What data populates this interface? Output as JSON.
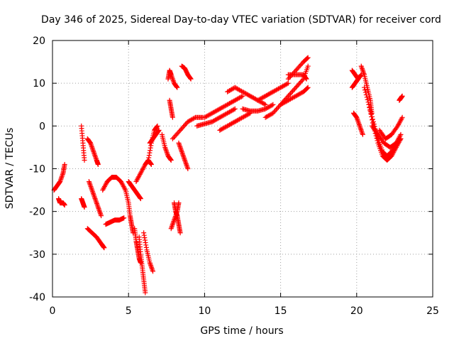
{
  "chart_data": {
    "type": "scatter",
    "title": "Day 346 of 2025, Sidereal Day-to-day VTEC variation (SDTVAR) for receiver cord",
    "xlabel": "GPS time / hours",
    "ylabel": "SDTVAR / TECUs",
    "xlim": [
      0,
      25
    ],
    "ylim": [
      -40,
      20
    ],
    "xticks": [
      "0",
      "5",
      "10",
      "15",
      "20",
      "25"
    ],
    "yticks": [
      "-40",
      "-30",
      "-20",
      "-10",
      "0",
      "10",
      "20"
    ],
    "grid": true,
    "marker": "+",
    "color": "#ff0000",
    "series": [
      {
        "name": "s1",
        "x": [
          0.1,
          0.3,
          0.5,
          0.7,
          0.8
        ],
        "y": [
          -15,
          -14,
          -13,
          -11,
          -9
        ]
      },
      {
        "name": "s2",
        "x": [
          0.4,
          0.5,
          0.7,
          0.8
        ],
        "y": [
          -17,
          -18,
          -18,
          -18.5
        ]
      },
      {
        "name": "s3",
        "x": [
          1.9,
          2.0,
          2.1
        ],
        "y": [
          0,
          -4,
          -8
        ]
      },
      {
        "name": "s4",
        "x": [
          1.9,
          2.0,
          2.1
        ],
        "y": [
          -17,
          -18,
          -19
        ]
      },
      {
        "name": "s5",
        "x": [
          2.3,
          2.5,
          2.7,
          2.9,
          3.0
        ],
        "y": [
          -3,
          -4,
          -6,
          -8,
          -9
        ]
      },
      {
        "name": "s6",
        "x": [
          2.4,
          2.6,
          2.8,
          3.0,
          3.2
        ],
        "y": [
          -13,
          -15,
          -17,
          -19,
          -21
        ]
      },
      {
        "name": "s7",
        "x": [
          2.3,
          2.6,
          2.9,
          3.2,
          3.4
        ],
        "y": [
          -24,
          -25,
          -26,
          -27.5,
          -28.5
        ]
      },
      {
        "name": "s8",
        "x": [
          3.3,
          3.6,
          3.9,
          4.2,
          4.5,
          4.8
        ],
        "y": [
          -15,
          -13,
          -12,
          -12,
          -13,
          -15
        ]
      },
      {
        "name": "s9",
        "x": [
          3.5,
          3.8,
          4.1,
          4.4,
          4.7
        ],
        "y": [
          -23,
          -22.5,
          -22,
          -22,
          -21.5
        ]
      },
      {
        "name": "s10",
        "x": [
          4.8,
          5.0,
          5.1,
          5.2,
          5.3
        ],
        "y": [
          -15,
          -18,
          -21,
          -23,
          -25
        ]
      },
      {
        "name": "s11",
        "x": [
          5.0,
          5.2,
          5.4,
          5.6,
          5.8
        ],
        "y": [
          -13,
          -14,
          -15,
          -16,
          -17
        ]
      },
      {
        "name": "s12",
        "x": [
          5.4,
          5.5,
          5.6,
          5.7,
          5.8
        ],
        "y": [
          -24,
          -27,
          -29,
          -31,
          -32
        ]
      },
      {
        "name": "s13",
        "x": [
          5.7,
          5.8,
          5.9,
          6.0,
          6.1
        ],
        "y": [
          -26,
          -30,
          -33,
          -36,
          -39
        ]
      },
      {
        "name": "s14",
        "x": [
          6.0,
          6.2,
          6.4,
          6.6
        ],
        "y": [
          -25,
          -29,
          -32,
          -34
        ]
      },
      {
        "name": "s15",
        "x": [
          5.5,
          5.8,
          6.1,
          6.3,
          6.5
        ],
        "y": [
          -13,
          -11,
          -9,
          -8,
          -9
        ]
      },
      {
        "name": "s16",
        "x": [
          6.3,
          6.5,
          6.7,
          6.9
        ],
        "y": [
          -8,
          -4,
          -1,
          0
        ]
      },
      {
        "name": "s17",
        "x": [
          6.4,
          6.6,
          6.8,
          7.0
        ],
        "y": [
          -4,
          -3,
          -2,
          -1
        ]
      },
      {
        "name": "s18",
        "x": [
          7.2,
          7.4,
          7.6,
          7.8
        ],
        "y": [
          -2,
          -5,
          -7,
          -8
        ]
      },
      {
        "name": "s19",
        "x": [
          7.8,
          8.0,
          8.2,
          8.3
        ],
        "y": [
          -24,
          -22,
          -20,
          -18
        ]
      },
      {
        "name": "s20",
        "x": [
          8.0,
          8.1,
          8.2,
          8.3,
          8.4
        ],
        "y": [
          -18,
          -20,
          -21,
          -23,
          -25
        ]
      },
      {
        "name": "s21",
        "x": [
          7.6,
          7.7,
          7.8,
          8.0,
          8.2
        ],
        "y": [
          11,
          13,
          12,
          10,
          9
        ]
      },
      {
        "name": "s22",
        "x": [
          7.7,
          7.8,
          7.9
        ],
        "y": [
          6,
          4,
          2
        ]
      },
      {
        "name": "s23",
        "x": [
          8.5,
          8.7,
          8.9,
          9.1
        ],
        "y": [
          14,
          13.5,
          12,
          11
        ]
      },
      {
        "name": "s24",
        "x": [
          7.9,
          8.4,
          8.9,
          9.4,
          9.9
        ],
        "y": [
          -3,
          -1,
          1,
          2,
          2
        ]
      },
      {
        "name": "s25",
        "x": [
          8.3,
          8.5,
          8.7,
          8.9
        ],
        "y": [
          -4,
          -6,
          -8,
          -10
        ]
      },
      {
        "name": "s26",
        "x": [
          9.5,
          10.0,
          10.5,
          11.0,
          11.5,
          12.0
        ],
        "y": [
          0,
          0.5,
          1,
          2,
          3,
          4
        ]
      },
      {
        "name": "s27",
        "x": [
          10.0,
          10.5,
          11.0,
          11.5,
          12.0,
          12.5
        ],
        "y": [
          2,
          3,
          4,
          5,
          6,
          7
        ]
      },
      {
        "name": "s28",
        "x": [
          11.0,
          11.5,
          12.0,
          12.5,
          13.0
        ],
        "y": [
          -1,
          0,
          1,
          2,
          3
        ]
      },
      {
        "name": "s29",
        "x": [
          11.5,
          12.0,
          12.5,
          13.0,
          13.5,
          14.0
        ],
        "y": [
          8,
          9,
          8,
          7,
          6,
          5
        ]
      },
      {
        "name": "s30",
        "x": [
          12.5,
          13.0,
          13.5,
          14.0,
          14.5
        ],
        "y": [
          4,
          3.5,
          3.5,
          4,
          5
        ]
      },
      {
        "name": "s31",
        "x": [
          13.5,
          14.0,
          14.5,
          15.0,
          15.5
        ],
        "y": [
          6,
          7,
          8,
          9,
          10
        ]
      },
      {
        "name": "s32",
        "x": [
          14.0,
          14.5,
          15.0,
          15.5,
          16.0,
          16.5,
          16.8
        ],
        "y": [
          2,
          3,
          5,
          7,
          9,
          11,
          14
        ]
      },
      {
        "name": "s33",
        "x": [
          15.5,
          16.0,
          16.5,
          16.8
        ],
        "y": [
          11,
          13,
          15,
          16
        ]
      },
      {
        "name": "s34",
        "x": [
          15.0,
          15.5,
          16.0,
          16.5,
          16.8
        ],
        "y": [
          5,
          6,
          7,
          8,
          9
        ]
      },
      {
        "name": "s35",
        "x": [
          15.5,
          16.0,
          16.5,
          16.7
        ],
        "y": [
          12,
          12,
          12,
          11
        ]
      },
      {
        "name": "s36",
        "x": [
          19.7,
          19.9,
          20.1
        ],
        "y": [
          13,
          12,
          11
        ]
      },
      {
        "name": "s37",
        "x": [
          19.7,
          19.9,
          20.1,
          20.3
        ],
        "y": [
          9,
          10,
          11,
          12
        ]
      },
      {
        "name": "s38",
        "x": [
          19.8,
          20.0,
          20.2,
          20.4
        ],
        "y": [
          3,
          2,
          0,
          -2
        ]
      },
      {
        "name": "s39",
        "x": [
          20.3,
          20.5,
          20.7,
          20.9,
          21.0
        ],
        "y": [
          14,
          12,
          9,
          6,
          3
        ]
      },
      {
        "name": "s40",
        "x": [
          20.5,
          20.8,
          21.1,
          21.4,
          21.7,
          22.0,
          22.3,
          22.6,
          22.9
        ],
        "y": [
          9,
          5,
          0,
          -4,
          -7,
          -8,
          -7,
          -5,
          -3
        ]
      },
      {
        "name": "s41",
        "x": [
          20.8,
          21.1,
          21.4,
          21.7,
          22.0,
          22.3,
          22.6,
          22.9
        ],
        "y": [
          5,
          1,
          -3,
          -6,
          -7,
          -6,
          -4,
          -2
        ]
      },
      {
        "name": "s42",
        "x": [
          21.0,
          21.4,
          21.8,
          22.2,
          22.6,
          22.9
        ],
        "y": [
          0,
          -2,
          -4,
          -5,
          -4,
          -3
        ]
      },
      {
        "name": "s43",
        "x": [
          21.5,
          21.9,
          22.3,
          22.7,
          23.0
        ],
        "y": [
          -1,
          -3,
          -2,
          0,
          2
        ]
      },
      {
        "name": "s44",
        "x": [
          22.8,
          22.9,
          23.0
        ],
        "y": [
          6,
          6.5,
          7
        ]
      }
    ]
  }
}
